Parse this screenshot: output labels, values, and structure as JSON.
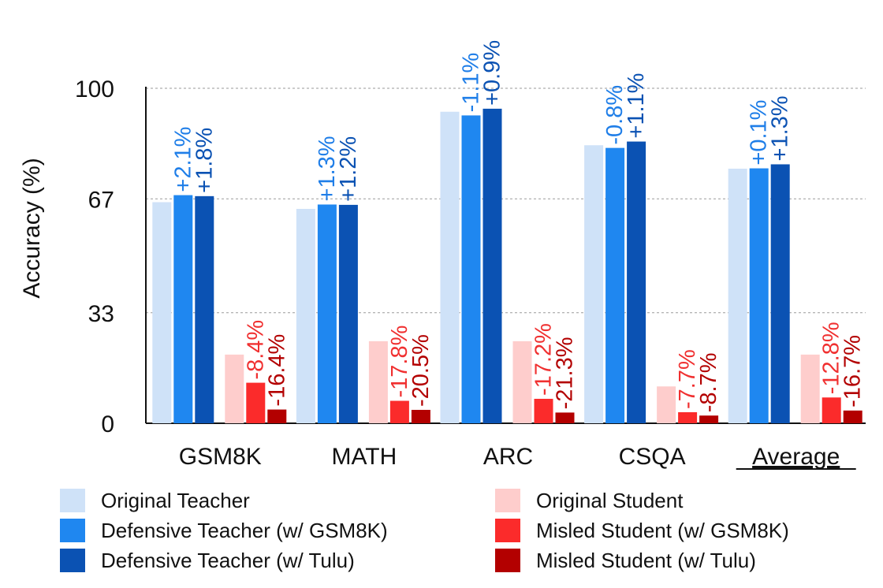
{
  "chart_data": {
    "type": "bar",
    "title": "",
    "xlabel": "",
    "ylabel": "Accuracy (%)",
    "ylim": [
      0,
      100
    ],
    "yticks": [
      0,
      33,
      67,
      100
    ],
    "grid": true,
    "categories": [
      "GSM8K",
      "MATH",
      "ARC",
      "CSQA",
      "Average"
    ],
    "underlined_category": "Average",
    "series": [
      {
        "name": "Original Teacher",
        "color": "#cfe2f8",
        "values": [
          66,
          64,
          93,
          83,
          76
        ],
        "labels": [
          "",
          "",
          "",
          "",
          ""
        ],
        "label_color": "#1f7ee8"
      },
      {
        "name": "Defensive Teacher (w/ GSM8K)",
        "color": "#1f87f0",
        "values": [
          68.1,
          65.3,
          91.9,
          82.2,
          76.1
        ],
        "labels": [
          "+2.1%",
          "+1.3%",
          "-1.1%",
          "-0.8%",
          "+0.1%"
        ],
        "label_color": "#1f7ee8"
      },
      {
        "name": "Defensive Teacher (w/ Tulu)",
        "color": "#0b52b3",
        "values": [
          67.8,
          65.2,
          93.9,
          84.1,
          77.3
        ],
        "labels": [
          "+1.8%",
          "+1.2%",
          "+0.9%",
          "+1.1%",
          "+1.3%"
        ],
        "label_color": "#0b52b3"
      },
      {
        "name": "Original Student",
        "color": "#fecdcc",
        "values": [
          20.5,
          24.5,
          24.5,
          11.0,
          20.5
        ],
        "labels": [
          "",
          "",
          "",
          "",
          ""
        ],
        "label_color": "#f03030"
      },
      {
        "name": "Misled Student (w/ GSM8K)",
        "color": "#fb2b2b",
        "values": [
          12.1,
          6.7,
          7.3,
          3.3,
          7.7
        ],
        "labels": [
          "-8.4%",
          "-17.8%",
          "-17.2%",
          "-7.7%",
          "-12.8%"
        ],
        "label_color": "#f03030"
      },
      {
        "name": "Misled Student (w/ Tulu)",
        "color": "#b30000",
        "values": [
          4.1,
          4.0,
          3.2,
          2.3,
          3.8
        ],
        "labels": [
          "-16.4%",
          "-20.5%",
          "-21.3%",
          "-8.7%",
          "-16.7%"
        ],
        "label_color": "#b30000"
      }
    ],
    "legend": {
      "placement": "bottom",
      "items": [
        {
          "label": "Original Teacher",
          "color": "#cfe2f8"
        },
        {
          "label": "Defensive Teacher (w/ GSM8K)",
          "color": "#1f87f0"
        },
        {
          "label": "Defensive Teacher (w/ Tulu)",
          "color": "#0b52b3"
        },
        {
          "label": "Original Student",
          "color": "#fecdcc"
        },
        {
          "label": "Misled Student (w/ GSM8K)",
          "color": "#fb2b2b"
        },
        {
          "label": "Misled Student (w/ Tulu)",
          "color": "#b30000"
        }
      ]
    }
  }
}
